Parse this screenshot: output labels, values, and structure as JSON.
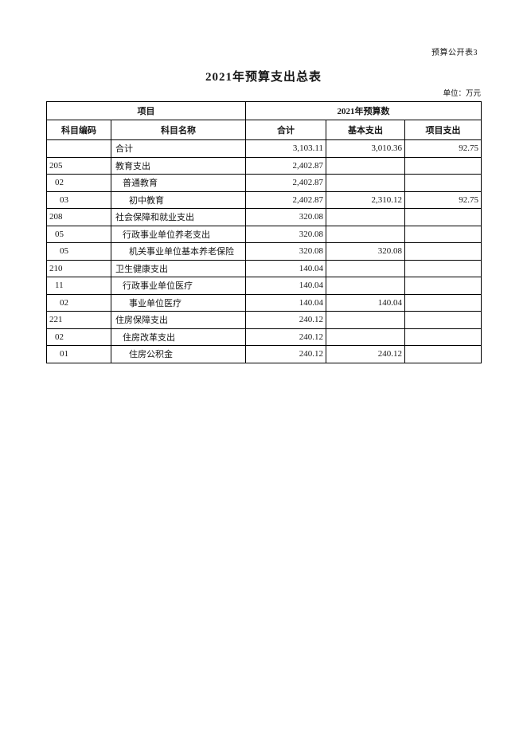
{
  "page": {
    "doc_label": "预算公开表3",
    "title": "2021年预算支出总表",
    "unit_note": "单位：万元"
  },
  "table": {
    "header": {
      "group_left": "项目",
      "group_right": "2021年预算数",
      "columns": [
        "科目编码",
        "科目名称",
        "合计",
        "基本支出",
        "项目支出"
      ]
    },
    "rows": [
      {
        "code": "",
        "name": "合计",
        "indent": 0,
        "total": "3,103.11",
        "basic": "3,010.36",
        "project": "92.75"
      },
      {
        "code": "205",
        "name": "教育支出",
        "indent": 0,
        "total": "2,402.87",
        "basic": "",
        "project": ""
      },
      {
        "code": "02",
        "name": "普通教育",
        "indent": 1,
        "total": "2,402.87",
        "basic": "",
        "project": ""
      },
      {
        "code": "03",
        "name": "初中教育",
        "indent": 2,
        "total": "2,402.87",
        "basic": "2,310.12",
        "project": "92.75"
      },
      {
        "code": "208",
        "name": "社会保障和就业支出",
        "indent": 0,
        "total": "320.08",
        "basic": "",
        "project": ""
      },
      {
        "code": "05",
        "name": "行政事业单位养老支出",
        "indent": 1,
        "total": "320.08",
        "basic": "",
        "project": ""
      },
      {
        "code": "05",
        "name": "机关事业单位基本养老保险",
        "indent": 2,
        "total": "320.08",
        "basic": "320.08",
        "project": ""
      },
      {
        "code": "210",
        "name": "卫生健康支出",
        "indent": 0,
        "total": "140.04",
        "basic": "",
        "project": ""
      },
      {
        "code": "11",
        "name": "行政事业单位医疗",
        "indent": 1,
        "total": "140.04",
        "basic": "",
        "project": ""
      },
      {
        "code": "02",
        "name": "事业单位医疗",
        "indent": 2,
        "total": "140.04",
        "basic": "140.04",
        "project": ""
      },
      {
        "code": "221",
        "name": "住房保障支出",
        "indent": 0,
        "total": "240.12",
        "basic": "",
        "project": ""
      },
      {
        "code": "02",
        "name": "住房改革支出",
        "indent": 1,
        "total": "240.12",
        "basic": "",
        "project": ""
      },
      {
        "code": "01",
        "name": "住房公积金",
        "indent": 2,
        "total": "240.12",
        "basic": "240.12",
        "project": ""
      }
    ]
  }
}
